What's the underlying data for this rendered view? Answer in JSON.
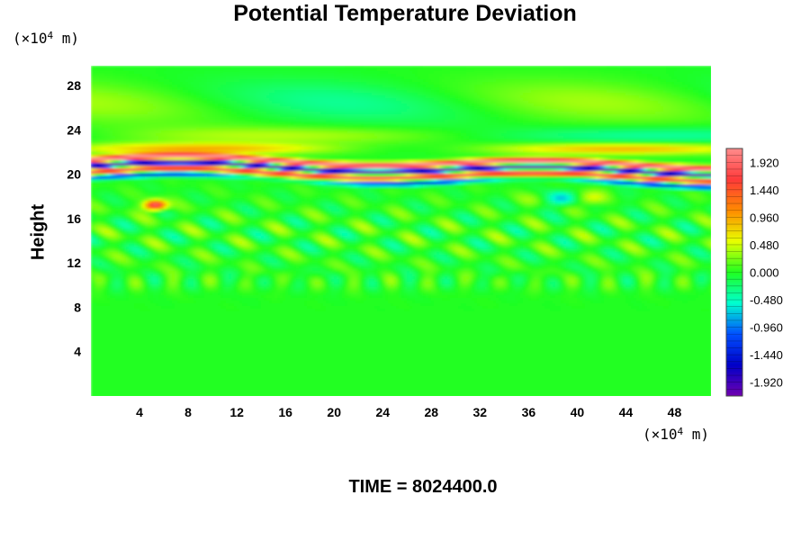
{
  "chart_data": {
    "type": "heatmap",
    "title": "Potential Temperature Deviation",
    "ylabel": "Height",
    "y_unit": {
      "prefix": "(×10",
      "exponent": "4",
      "suffix": " m)"
    },
    "x_unit": {
      "prefix": "(×10",
      "exponent": "4",
      "suffix": " m)"
    },
    "xlim": [
      0,
      51
    ],
    "ylim": [
      0,
      29.8
    ],
    "x_ticks": [
      "4",
      "8",
      "12",
      "16",
      "20",
      "24",
      "28",
      "32",
      "36",
      "40",
      "44",
      "48"
    ],
    "y_ticks": [
      "4",
      "8",
      "12",
      "16",
      "20",
      "24",
      "28"
    ],
    "colorbar": {
      "range": [
        -2.16,
        2.16
      ],
      "tick_labels": [
        "1.920",
        "1.440",
        "0.960",
        "0.480",
        "0.000",
        "-0.480",
        "-0.960",
        "-1.440",
        "-1.920"
      ],
      "colors": [
        "#ff8c8c",
        "#ff3a3a",
        "#ff8a00",
        "#e8ff00",
        "#20ff20",
        "#00ffd0",
        "#0050ff",
        "#0000c8",
        "#7000b0"
      ]
    },
    "features": [
      {
        "description": "strong alternating warm/cold layers",
        "height_range": [
          19.5,
          21.5
        ]
      },
      {
        "description": "weak turbulent warm/cool patches",
        "height_range": [
          9,
          18
        ]
      },
      {
        "description": "near-zero deviation (uniform green)",
        "height_range": [
          0,
          9
        ]
      }
    ],
    "footer": "TIME = 8024400.0"
  }
}
